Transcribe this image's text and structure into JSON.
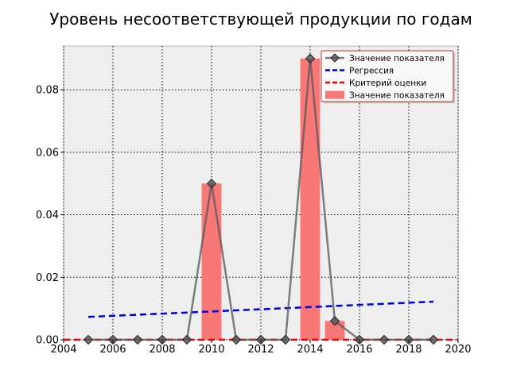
{
  "chart_data": {
    "type": "bar",
    "title": "Уровень несоответствующей продукции по годам",
    "xlabel": "",
    "ylabel": "",
    "xlim": [
      2004,
      2020
    ],
    "ylim": [
      0,
      0.094
    ],
    "x_ticks": [
      "2004",
      "2006",
      "2008",
      "2010",
      "2012",
      "2014",
      "2016",
      "2018",
      "2020"
    ],
    "y_ticks": [
      "0.00",
      "0.02",
      "0.04",
      "0.06",
      "0.08"
    ],
    "grid": true,
    "legend_position": "top-right",
    "categories": [
      2005,
      2006,
      2007,
      2008,
      2009,
      2010,
      2011,
      2012,
      2013,
      2014,
      2015,
      2016,
      2017,
      2018,
      2019
    ],
    "series": [
      {
        "name": "Значение показателя",
        "kind": "line",
        "color": "#555555",
        "marker": "diamond",
        "values": [
          0,
          0,
          0,
          0,
          0,
          0.05,
          0,
          0,
          0,
          0.09,
          0.006,
          0,
          0,
          0,
          0
        ]
      },
      {
        "name": "Регрессия",
        "kind": "dashed-line",
        "color": "#0000dd",
        "x": [
          2005,
          2019
        ],
        "values": [
          0.0073,
          0.0122
        ]
      },
      {
        "name": "Критерий оценки",
        "kind": "dashed-line",
        "color": "#ee0000",
        "x": [
          2004,
          2020
        ],
        "values": [
          0,
          0
        ]
      },
      {
        "name": "Значение показателя",
        "kind": "bar",
        "color": "#f87878",
        "values": [
          0,
          0,
          0,
          0,
          0,
          0.05,
          0,
          0,
          0,
          0.09,
          0.006,
          0,
          0,
          0,
          0
        ]
      }
    ]
  },
  "colors": {
    "plot_background": "#eeeeee",
    "grid": "#000000"
  }
}
